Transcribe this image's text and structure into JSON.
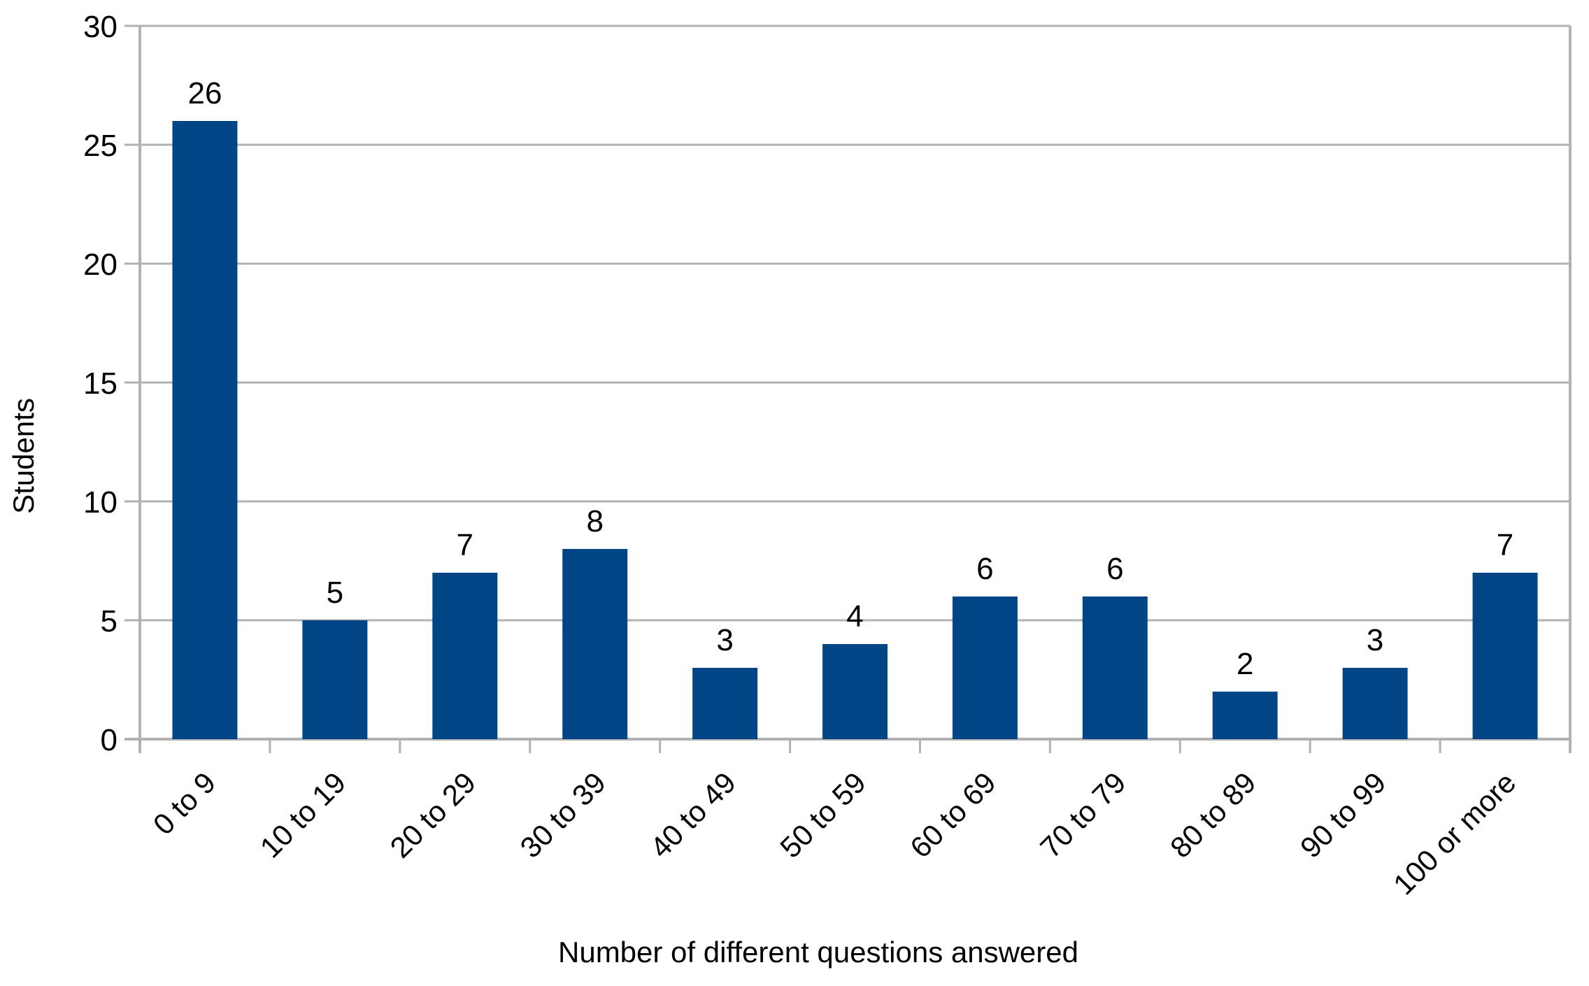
{
  "chart_data": {
    "type": "bar",
    "categories": [
      "0 to 9",
      "10 to 19",
      "20 to 29",
      "30 to 39",
      "40 to 49",
      "50 to 59",
      "60 to 69",
      "70 to 79",
      "80 to 89",
      "90 to 99",
      "100 or more"
    ],
    "values": [
      26,
      5,
      7,
      8,
      3,
      4,
      6,
      6,
      2,
      3,
      7
    ],
    "xlabel": "Number of different questions answered",
    "ylabel": "Students",
    "ylim": [
      0,
      30
    ],
    "yticks": [
      0,
      5,
      10,
      15,
      20,
      25,
      30
    ],
    "grid": true,
    "legend": false,
    "data_labels_shown": true,
    "category_label_rotation_deg": 45,
    "colors": {
      "bar": "#004586",
      "grid": "#b2b2b2",
      "axis": "#b2b2b2",
      "text": "#000000",
      "background": "#ffffff"
    }
  }
}
